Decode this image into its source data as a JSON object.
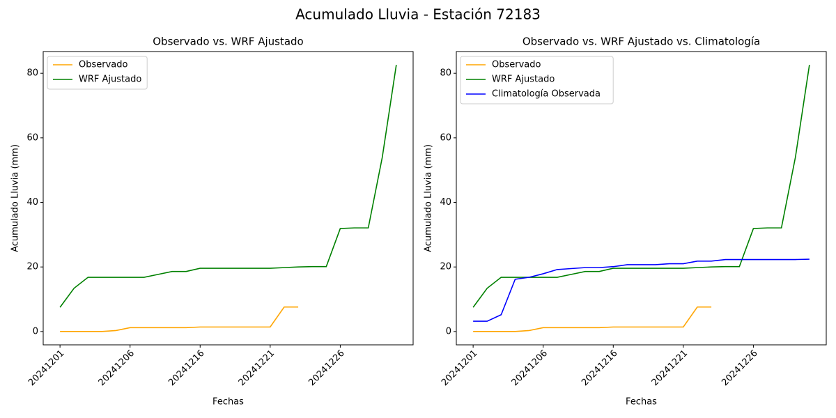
{
  "title": "Acumulado Lluvia - Estación 72183",
  "chart_data": [
    {
      "type": "line",
      "title": "Observado vs. WRF Ajustado",
      "x_label": "Fechas",
      "y_label": "Acumulado Lluvia (mm)",
      "categories": [
        "20241201",
        null,
        null,
        null,
        null,
        "20241206",
        null,
        null,
        null,
        null,
        "20241216",
        null,
        null,
        null,
        null,
        "20241221",
        null,
        null,
        null,
        null,
        "20241226",
        null,
        null,
        null,
        null
      ],
      "series": [
        {
          "name": "Observado",
          "color": "orange",
          "values": [
            0,
            0,
            0,
            0,
            0.3,
            1.2,
            1.2,
            1.2,
            1.2,
            1.2,
            1.4,
            1.4,
            1.4,
            1.4,
            1.4,
            1.4,
            7.6,
            7.6,
            null,
            null,
            null,
            null,
            null,
            null,
            null
          ]
        },
        {
          "name": "WRF Ajustado",
          "color": "green",
          "values": [
            7.5,
            13.4,
            16.8,
            16.8,
            16.8,
            16.8,
            16.8,
            17.7,
            18.6,
            18.6,
            19.6,
            19.6,
            19.6,
            19.6,
            19.6,
            19.6,
            19.8,
            20.0,
            20.1,
            20.1,
            31.9,
            32.1,
            32.1,
            54,
            82.6
          ]
        }
      ],
      "ylim": [
        -4.13,
        86.73
      ],
      "yticks": [
        0,
        20,
        40,
        60,
        80
      ],
      "xlim": [
        -1.2,
        25.2
      ],
      "legend": "upper left"
    },
    {
      "type": "line",
      "title": "Observado vs. WRF Ajustado vs. Climatología",
      "x_label": "Fechas",
      "y_label": "Acumulado Lluvia (mm)",
      "categories": [
        "20241201",
        null,
        null,
        null,
        null,
        "20241206",
        null,
        null,
        null,
        null,
        "20241216",
        null,
        null,
        null,
        null,
        "20241221",
        null,
        null,
        null,
        null,
        "20241226",
        null,
        null,
        null,
        null
      ],
      "series": [
        {
          "name": "Observado",
          "color": "orange",
          "values": [
            0,
            0,
            0,
            0,
            0.3,
            1.2,
            1.2,
            1.2,
            1.2,
            1.2,
            1.4,
            1.4,
            1.4,
            1.4,
            1.4,
            1.4,
            7.6,
            7.6,
            null,
            null,
            null,
            null,
            null,
            null,
            null
          ]
        },
        {
          "name": "WRF Ajustado",
          "color": "green",
          "values": [
            7.5,
            13.4,
            16.8,
            16.8,
            16.8,
            16.8,
            16.8,
            17.7,
            18.6,
            18.6,
            19.6,
            19.6,
            19.6,
            19.6,
            19.6,
            19.6,
            19.8,
            20.0,
            20.1,
            20.1,
            31.9,
            32.1,
            32.1,
            54,
            82.6
          ]
        },
        {
          "name": "Climatología Observada",
          "color": "blue",
          "values": [
            3.2,
            3.2,
            5.2,
            16.2,
            16.8,
            17.9,
            19.2,
            19.5,
            19.8,
            19.8,
            20.1,
            20.7,
            20.7,
            20.7,
            21.0,
            21.0,
            21.8,
            21.8,
            22.3,
            22.3,
            22.3,
            22.3,
            22.3,
            22.3,
            22.4
          ]
        }
      ],
      "ylim": [
        -4.13,
        86.73
      ],
      "yticks": [
        0,
        20,
        40,
        60,
        80
      ],
      "xlim": [
        -1.2,
        25.2
      ],
      "legend": "upper left"
    }
  ]
}
